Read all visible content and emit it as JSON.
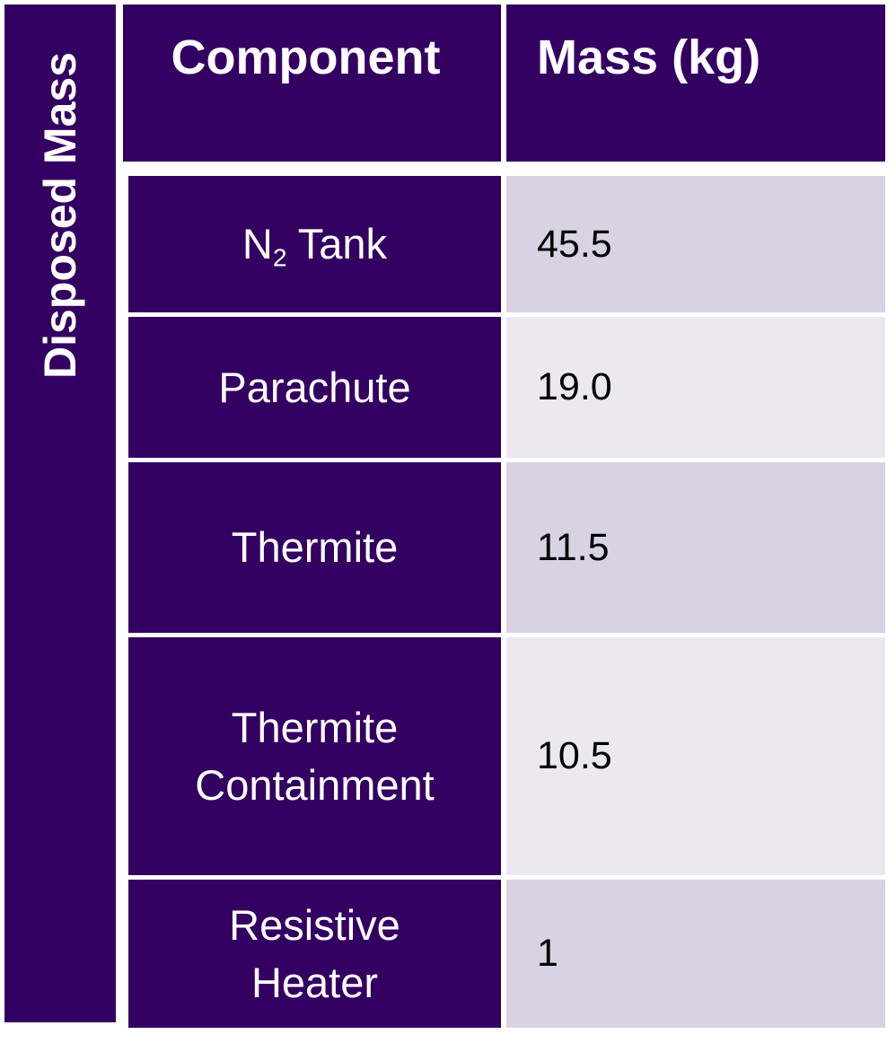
{
  "side_label": "Disposed Mass",
  "header": {
    "component": "Component",
    "mass": "Mass (kg)"
  },
  "rows": [
    {
      "component_base": "N",
      "component_sub": "2",
      "component_rest": " Tank",
      "mass": "45.5"
    },
    {
      "component": "Parachute",
      "mass": "19.0"
    },
    {
      "component": "Thermite",
      "mass": "11.5"
    },
    {
      "component_line1": "Thermite",
      "component_line2": "Containment",
      "mass": "10.5"
    },
    {
      "component_line1": "Resistive",
      "component_line2": "Heater",
      "mass": "1"
    }
  ],
  "colors": {
    "header_bg": "#330062",
    "row_shade_dark": "#d8d3e2",
    "row_shade_light": "#ebe8ef"
  }
}
